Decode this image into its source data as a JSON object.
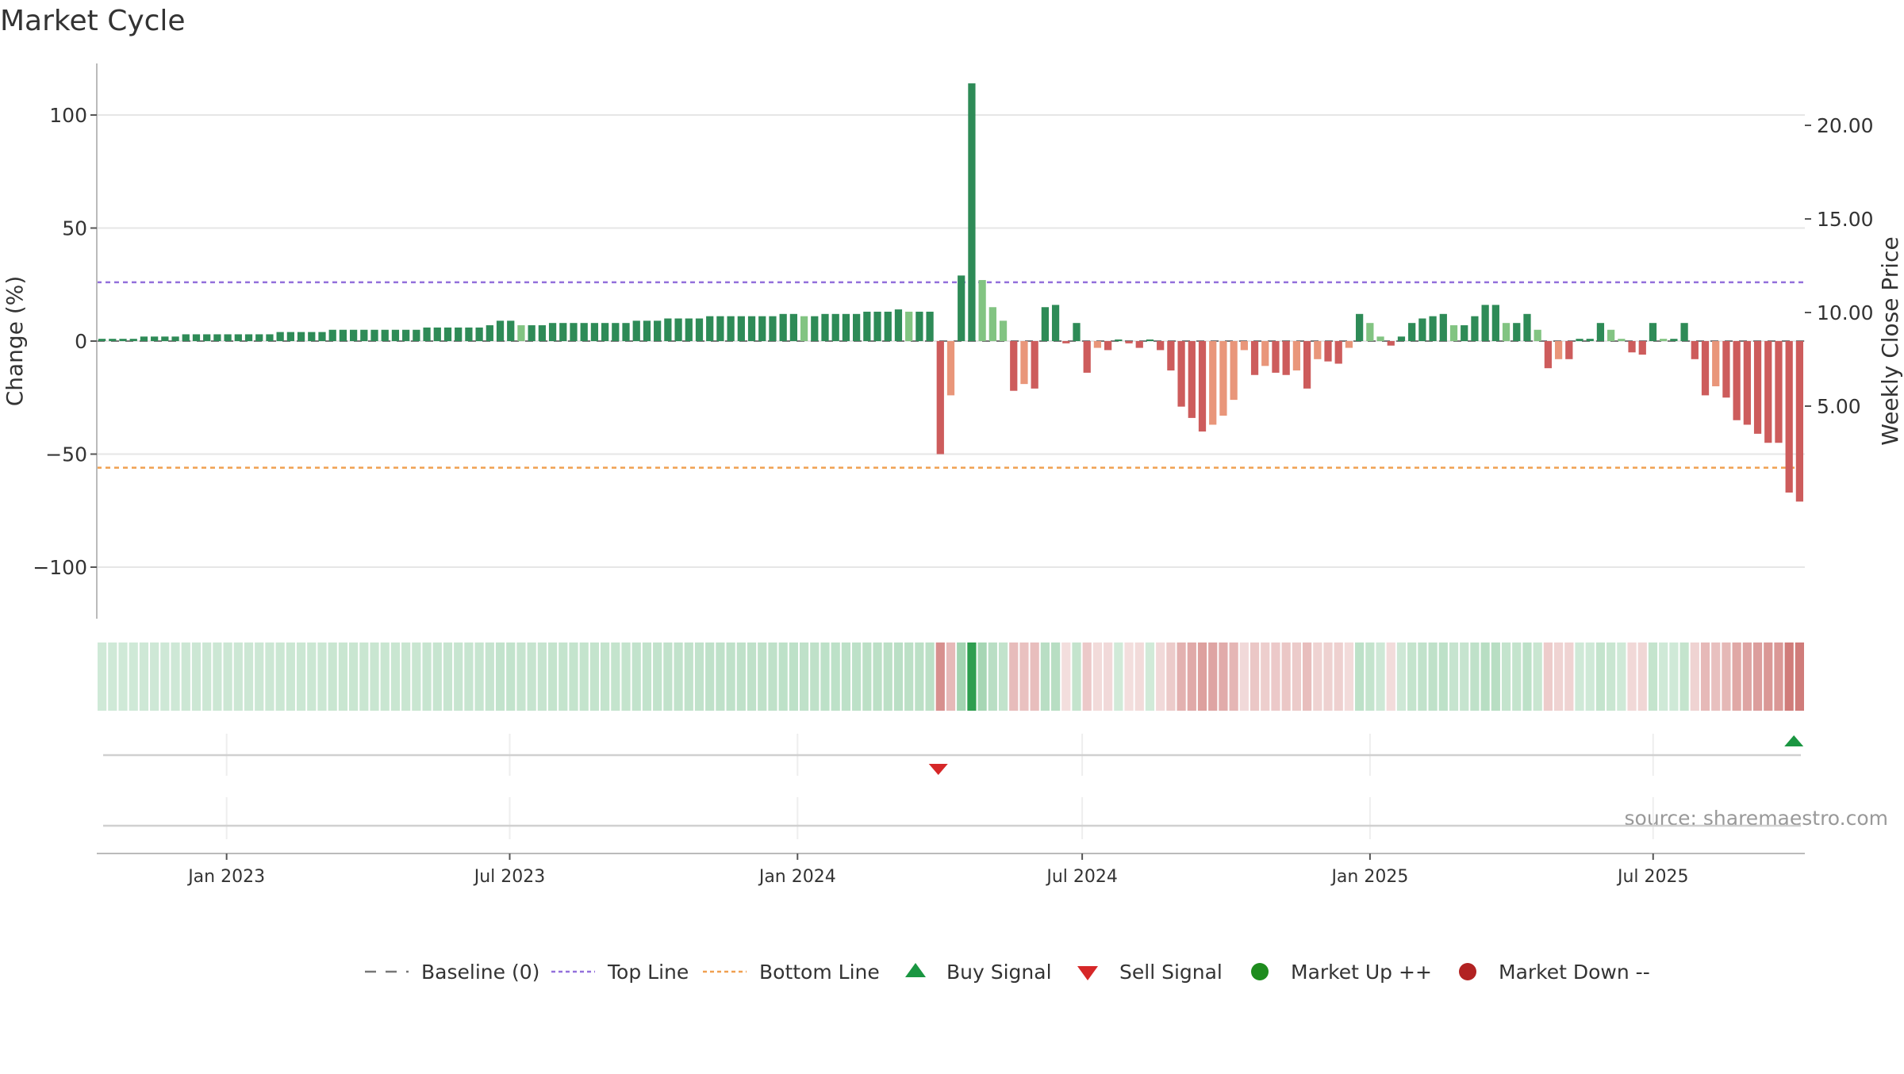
{
  "chart_data": {
    "type": "bar",
    "title": "Market Cycle",
    "ylabel": "Change (%)",
    "y2label": "Weekly Close Price",
    "ylim": [
      -123,
      123
    ],
    "yticks": [
      100,
      50,
      0,
      -50,
      -100
    ],
    "ytick_labels": [
      "100",
      "50",
      "0",
      "−50",
      "−100"
    ],
    "y2lim": [
      2.7,
      22.6
    ],
    "y2ticks": [
      20,
      15,
      10,
      5
    ],
    "y2tick_labels": [
      "20.00",
      "15.00",
      "10.00",
      "5.00"
    ],
    "x_start": "2022-10-10",
    "x_end": "2025-10-06",
    "xticks": [
      "2023-01-01",
      "2023-07-01",
      "2024-01-01",
      "2024-07-01",
      "2025-01-01",
      "2025-07-01"
    ],
    "xtick_labels": [
      "Jan 2023",
      "Jul 2023",
      "Jan 2024",
      "Jul 2024",
      "Jan 2025",
      "Jul 2025"
    ],
    "top_line": 26,
    "bottom_line": -56,
    "baseline": 0,
    "grid": true,
    "legend_position": "bottom-center",
    "legend": [
      "Baseline (0)",
      "Top Line",
      "Bottom Line",
      "Buy Signal",
      "Sell Signal",
      "Market Up ++",
      "Market Down --"
    ],
    "source": "source: sharemaestro.com",
    "colors": {
      "up_strong": "#2e8b57",
      "up_light": "#82c482",
      "down_strong": "#cd5c5c",
      "down_light": "#e9967a",
      "top_line": "#9370db",
      "bottom_line": "#f0a050",
      "buy": "#1a9641",
      "sell": "#d62728",
      "market_up": "#1e8c1e",
      "market_down": "#b22222"
    },
    "values": [
      1,
      1,
      1,
      1,
      2,
      2,
      2,
      2,
      3,
      3,
      3,
      3,
      3,
      3,
      3,
      3,
      3,
      4,
      4,
      4,
      4,
      4,
      5,
      5,
      5,
      5,
      5,
      5,
      5,
      5,
      5,
      6,
      6,
      6,
      6,
      6,
      6,
      7,
      9,
      9,
      7,
      7,
      7,
      8,
      8,
      8,
      8,
      8,
      8,
      8,
      8,
      9,
      9,
      9,
      10,
      10,
      10,
      10,
      11,
      11,
      11,
      11,
      11,
      11,
      11,
      12,
      12,
      11,
      11,
      12,
      12,
      12,
      12,
      13,
      13,
      13,
      14,
      13,
      13,
      13,
      -50,
      -24,
      29,
      114,
      27,
      15,
      9,
      -22,
      -19,
      -21,
      15,
      16,
      -1,
      8,
      -14,
      -3,
      -4,
      0,
      -1,
      -3,
      0,
      -4,
      -13,
      -29,
      -34,
      -40,
      -37,
      -33,
      -26,
      -4,
      -15,
      -11,
      -14,
      -15,
      -13,
      -21,
      -8,
      -9,
      -10,
      -3,
      12,
      8,
      2,
      -2,
      2,
      8,
      10,
      11,
      12,
      7,
      7,
      11,
      16,
      16,
      8,
      8,
      12,
      5,
      -12,
      -8,
      -8,
      1,
      1,
      8,
      5,
      1,
      -5,
      -6,
      8,
      1,
      1,
      8,
      -8,
      -24,
      -20,
      -25,
      -35,
      -37,
      -41,
      -45,
      -45,
      -67,
      -71
    ],
    "signals": [
      {
        "type": "sell",
        "date": "2024-03-31"
      },
      {
        "type": "buy",
        "date": "2025-09-29"
      }
    ]
  }
}
